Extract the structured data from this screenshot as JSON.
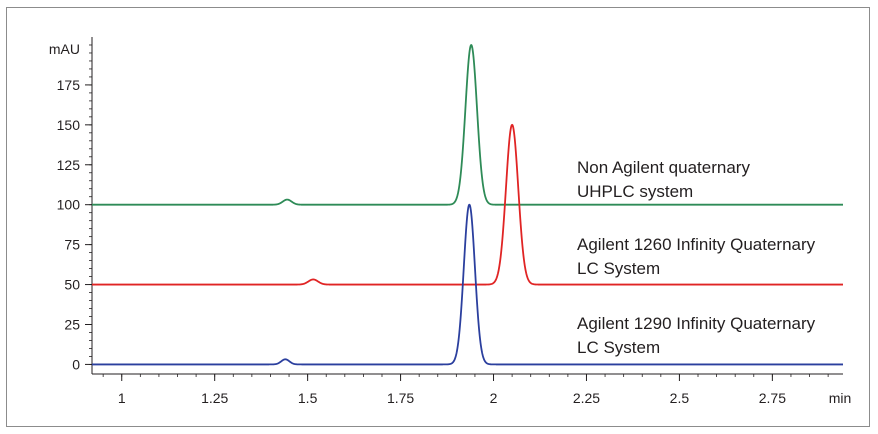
{
  "chart_data": {
    "type": "line",
    "ylabel": "mAU",
    "xlabel": "min",
    "xlim": [
      0.92,
      2.94
    ],
    "ylim": [
      -6,
      205
    ],
    "x_ticks": [
      1,
      1.25,
      1.5,
      1.75,
      2,
      2.25,
      2.5,
      2.75
    ],
    "x_tick_labels": [
      "1",
      "1.25",
      "1.5",
      "1.75",
      "2",
      "2.25",
      "2.5",
      "2.75"
    ],
    "y_ticks": [
      0,
      25,
      50,
      75,
      100,
      125,
      150,
      175
    ],
    "y_tick_labels": [
      "0",
      "25",
      "50",
      "75",
      "100",
      "125",
      "150",
      "175"
    ],
    "grid": false,
    "series": [
      {
        "label_lines": [
          "Non Agilent  quaternary",
          "UHPLC system"
        ],
        "color": "#2e8b57",
        "baseline": 100,
        "peaks": [
          {
            "x": 1.445,
            "height": 3.2,
            "width": 0.012
          },
          {
            "x": 1.94,
            "height": 100,
            "width": 0.0155
          }
        ]
      },
      {
        "label_lines": [
          "Agilent 1260 Infinity Quaternary",
          "LC System"
        ],
        "color": "#e02424",
        "baseline": 50,
        "peaks": [
          {
            "x": 1.515,
            "height": 3.2,
            "width": 0.013
          },
          {
            "x": 2.05,
            "height": 100,
            "width": 0.0165
          }
        ]
      },
      {
        "label_lines": [
          "Agilent 1290 Infinity Quaternary",
          "LC System"
        ],
        "color": "#2b3f9e",
        "baseline": 0,
        "peaks": [
          {
            "x": 1.44,
            "height": 3.2,
            "width": 0.011
          },
          {
            "x": 1.935,
            "height": 100,
            "width": 0.015
          }
        ]
      }
    ]
  }
}
